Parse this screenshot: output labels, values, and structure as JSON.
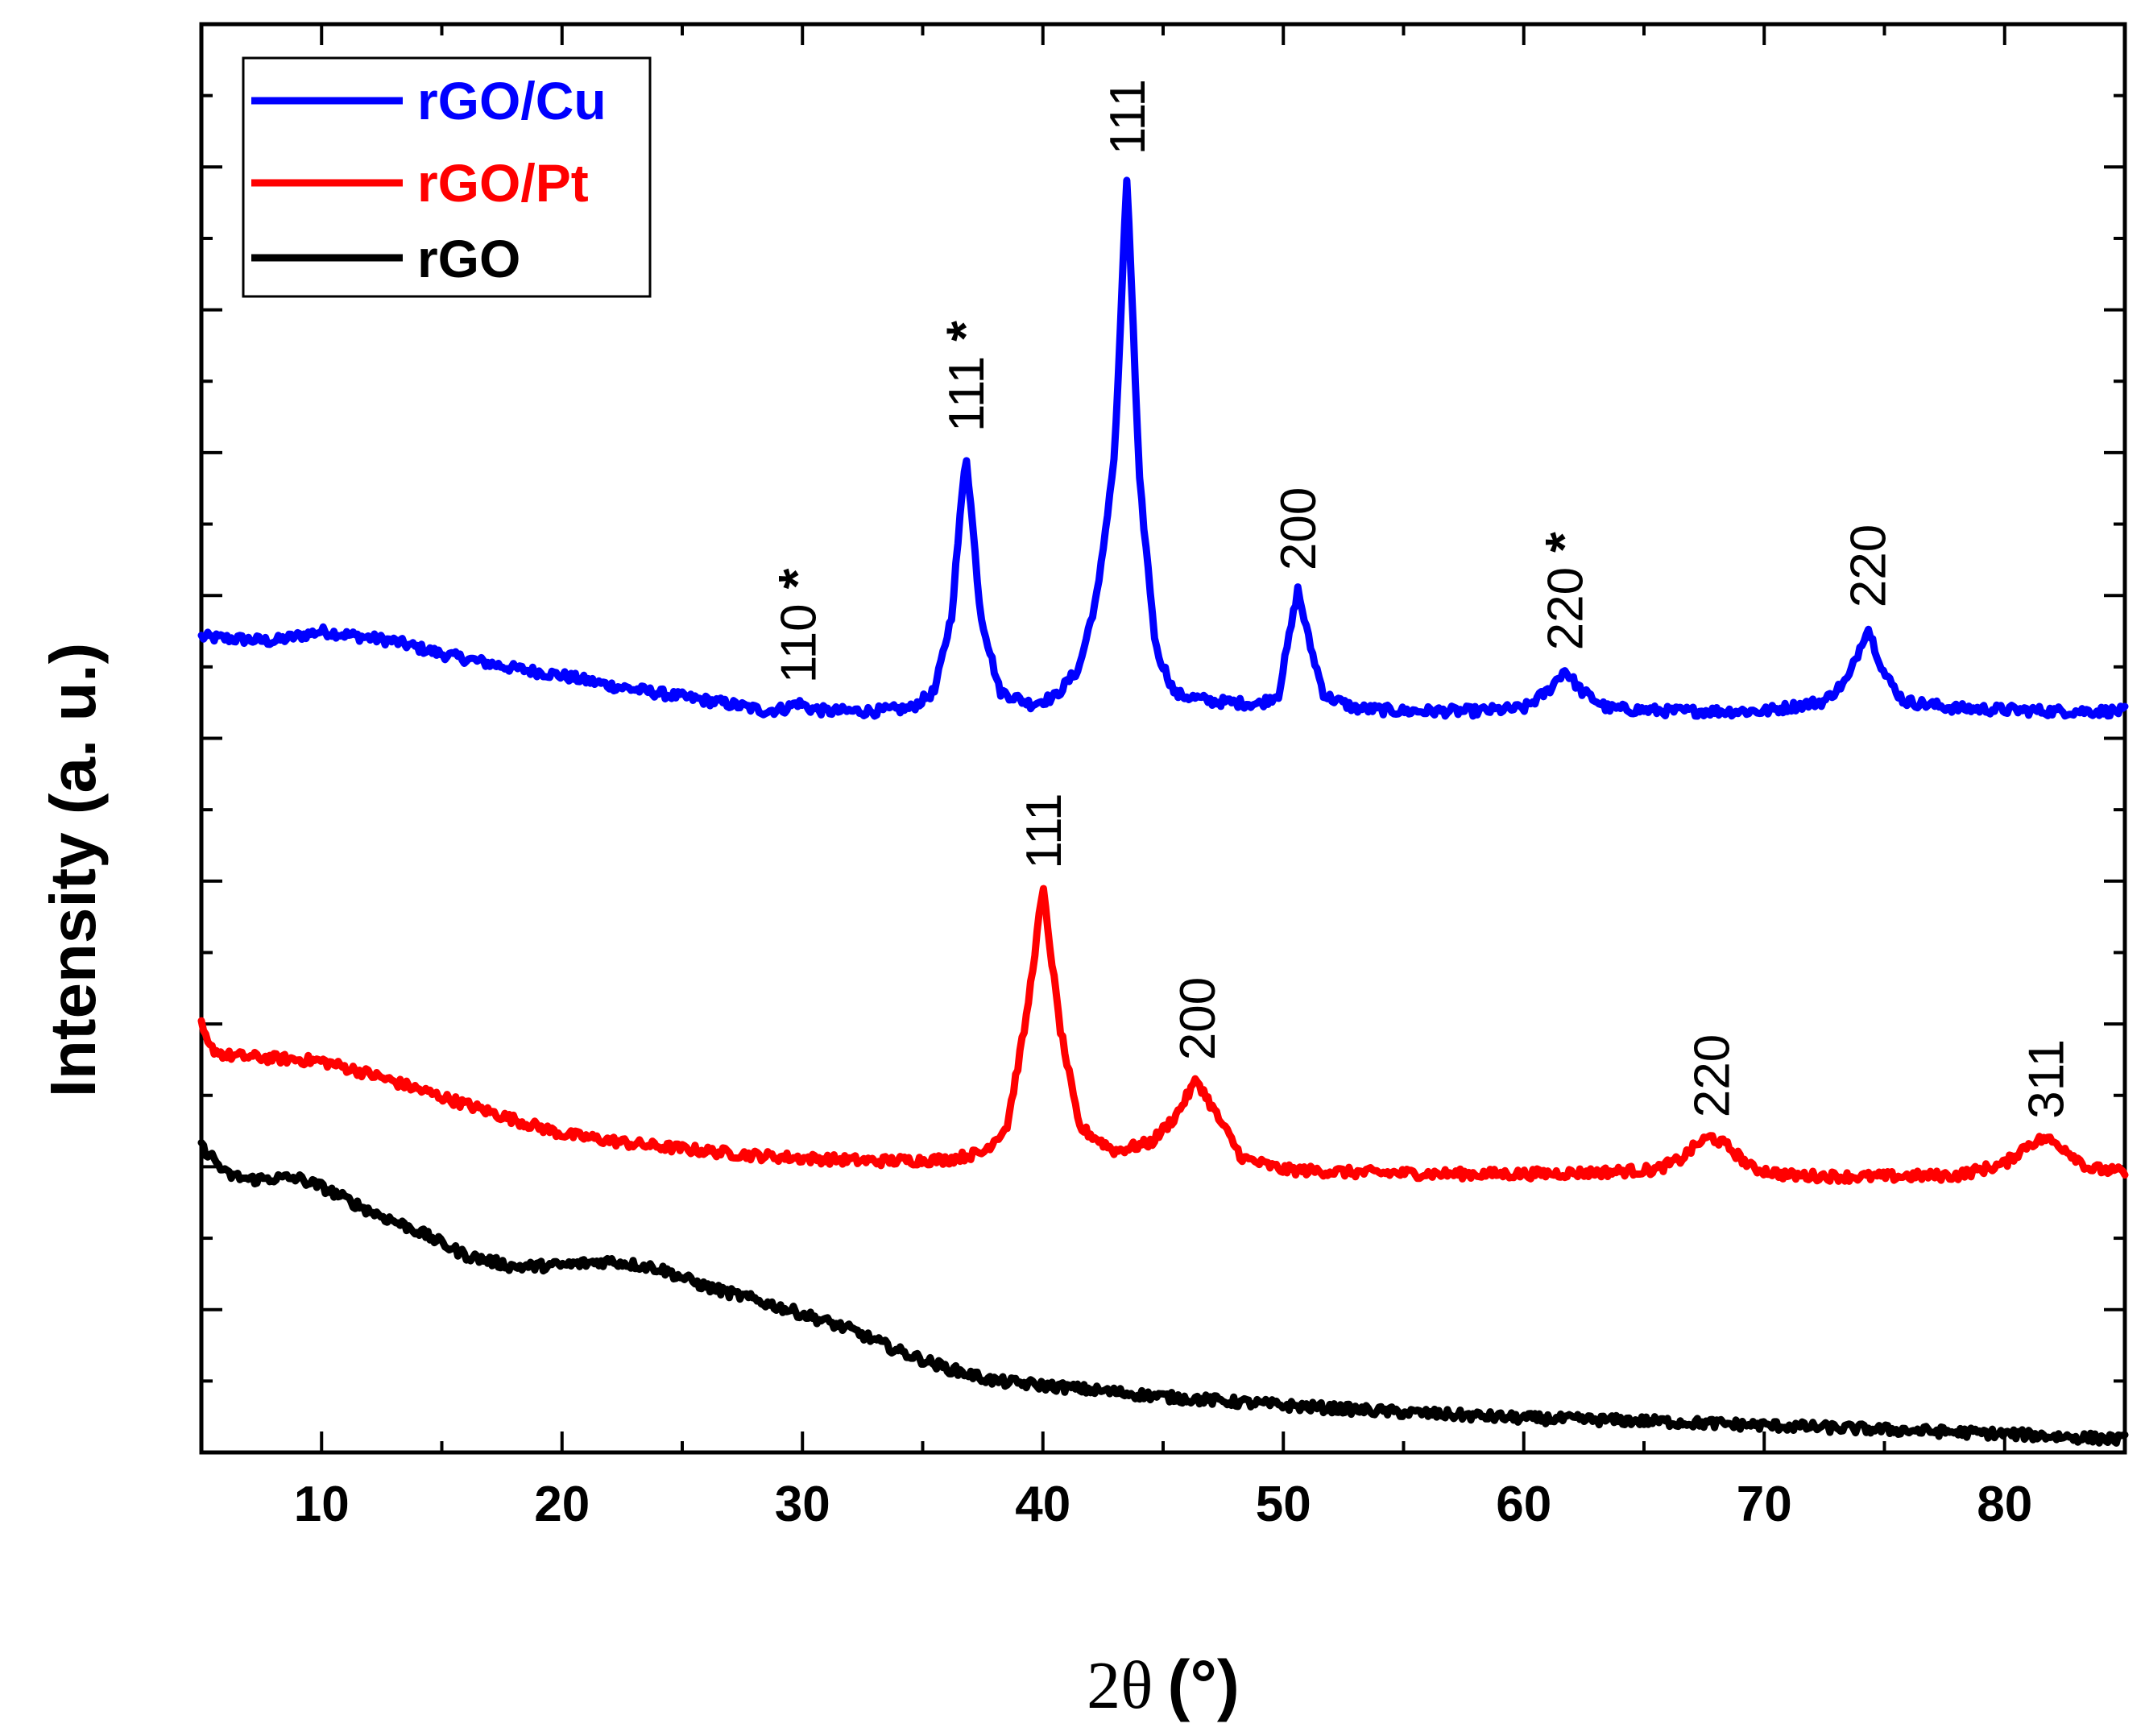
{
  "chart_data": {
    "type": "line",
    "title": "",
    "xlabel": "2θ",
    "xlabel_unit": "(°)",
    "ylabel": "Intensity (a. u.)",
    "xlim": [
      5,
      85
    ],
    "ylim": [
      0,
      100
    ],
    "y_ticks_labeled": false,
    "x_ticks": [
      10,
      20,
      30,
      40,
      50,
      60,
      70,
      80
    ],
    "x_tick_labels": [
      "10",
      "20",
      "30",
      "40",
      "50",
      "60",
      "70",
      "80"
    ],
    "legend": {
      "position": "top-left",
      "entries": [
        "rGO/Cu",
        "rGO/Pt",
        "rGO"
      ]
    },
    "series": [
      {
        "name": "rGO/Cu",
        "color": "#0000ff",
        "points": [
          [
            5,
            57.1
          ],
          [
            8,
            56.8
          ],
          [
            10,
            57.5
          ],
          [
            13,
            56.8
          ],
          [
            15,
            55.9
          ],
          [
            18,
            54.9
          ],
          [
            20,
            54.4
          ],
          [
            22,
            53.7
          ],
          [
            25,
            52.9
          ],
          [
            27,
            52.4
          ],
          [
            28.5,
            51.9
          ],
          [
            29.3,
            52.1
          ],
          [
            29.8,
            52.5
          ],
          [
            30.3,
            52.1
          ],
          [
            31,
            51.9
          ],
          [
            33,
            51.9
          ],
          [
            34.5,
            52.1
          ],
          [
            35.5,
            53.3
          ],
          [
            36.2,
            58.6
          ],
          [
            36.8,
            70.1
          ],
          [
            37.4,
            58.8
          ],
          [
            38.2,
            53.3
          ],
          [
            39.5,
            52.4
          ],
          [
            40.5,
            52.9
          ],
          [
            41.5,
            54.9
          ],
          [
            42.3,
            60.4
          ],
          [
            43,
            70.2
          ],
          [
            43.5,
            89.5
          ],
          [
            44,
            68.3
          ],
          [
            44.7,
            56.3
          ],
          [
            45.5,
            53.1
          ],
          [
            47,
            52.6
          ],
          [
            49,
            52.4
          ],
          [
            49.8,
            53.1
          ],
          [
            50.2,
            56.7
          ],
          [
            50.6,
            60.4
          ],
          [
            51.1,
            56.6
          ],
          [
            51.7,
            53.0
          ],
          [
            53,
            52.1
          ],
          [
            55,
            51.9
          ],
          [
            58,
            51.9
          ],
          [
            60,
            52.1
          ],
          [
            61,
            53.3
          ],
          [
            61.7,
            54.8
          ],
          [
            62.4,
            53.3
          ],
          [
            63.5,
            52.1
          ],
          [
            66,
            51.9
          ],
          [
            70,
            51.9
          ],
          [
            72.5,
            52.6
          ],
          [
            73.5,
            54.2
          ],
          [
            74.3,
            57.8
          ],
          [
            75,
            54.5
          ],
          [
            75.8,
            52.6
          ],
          [
            78,
            52.1
          ],
          [
            82,
            51.9
          ],
          [
            85,
            51.9
          ]
        ]
      },
      {
        "name": "rGO/Pt",
        "color": "#ff0000",
        "points": [
          [
            5,
            29.9
          ],
          [
            5.3,
            28.4
          ],
          [
            6,
            27.8
          ],
          [
            8,
            27.6
          ],
          [
            10,
            27.4
          ],
          [
            12,
            26.5
          ],
          [
            15,
            24.9
          ],
          [
            18,
            23.3
          ],
          [
            20,
            22.3
          ],
          [
            23,
            21.6
          ],
          [
            26,
            21.1
          ],
          [
            28,
            20.8
          ],
          [
            30,
            20.6
          ],
          [
            33,
            20.4
          ],
          [
            36,
            20.5
          ],
          [
            37.5,
            21.0
          ],
          [
            38.5,
            22.8
          ],
          [
            39.3,
            30.3
          ],
          [
            40,
            39.5
          ],
          [
            40.7,
            29.9
          ],
          [
            41.5,
            22.8
          ],
          [
            43,
            21.1
          ],
          [
            44.5,
            21.7
          ],
          [
            45.5,
            23.5
          ],
          [
            46.4,
            26.1
          ],
          [
            47.3,
            23.4
          ],
          [
            48.3,
            20.6
          ],
          [
            50,
            19.8
          ],
          [
            53,
            19.6
          ],
          [
            57,
            19.5
          ],
          [
            60,
            19.5
          ],
          [
            63,
            19.6
          ],
          [
            65.5,
            19.8
          ],
          [
            66.5,
            20.5
          ],
          [
            67.3,
            21.7
          ],
          [
            67.8,
            22.1
          ],
          [
            68.5,
            21.4
          ],
          [
            69.5,
            19.9
          ],
          [
            71,
            19.4
          ],
          [
            74,
            19.3
          ],
          [
            78,
            19.4
          ],
          [
            80,
            20.2
          ],
          [
            81,
            21.6
          ],
          [
            81.7,
            22.0
          ],
          [
            82.5,
            21.3
          ],
          [
            83.5,
            19.9
          ],
          [
            85,
            19.6
          ]
        ]
      },
      {
        "name": "rGO",
        "color": "#000000",
        "points": [
          [
            5,
            21.4
          ],
          [
            5.5,
            20.6
          ],
          [
            6,
            19.5
          ],
          [
            7,
            19.1
          ],
          [
            8,
            19.2
          ],
          [
            9,
            19.2
          ],
          [
            10,
            18.6
          ],
          [
            12,
            16.9
          ],
          [
            14,
            15.5
          ],
          [
            16,
            13.8
          ],
          [
            18,
            13.0
          ],
          [
            20,
            13.1
          ],
          [
            22,
            13.4
          ],
          [
            24,
            12.9
          ],
          [
            26,
            11.6
          ],
          [
            28,
            10.7
          ],
          [
            30,
            9.7
          ],
          [
            32,
            8.6
          ],
          [
            34,
            7.1
          ],
          [
            36,
            5.9
          ],
          [
            38,
            5.0
          ],
          [
            40,
            4.7
          ],
          [
            45,
            3.9
          ],
          [
            50,
            3.3
          ],
          [
            55,
            2.8
          ],
          [
            60,
            2.4
          ],
          [
            65,
            2.2
          ],
          [
            70,
            1.9
          ],
          [
            75,
            1.6
          ],
          [
            80,
            1.3
          ],
          [
            85,
            0.9
          ]
        ]
      }
    ],
    "annotations": [
      {
        "text": "110",
        "star": "*",
        "series": "rGO/Cu",
        "x": 29.8
      },
      {
        "text": "111",
        "star": "*",
        "series": "rGO/Cu",
        "x": 36.8
      },
      {
        "text": "111",
        "star": "",
        "series": "rGO/Cu",
        "x": 43.5
      },
      {
        "text": "200",
        "star": "",
        "series": "rGO/Cu",
        "x": 50.6
      },
      {
        "text": "220",
        "star": "*",
        "series": "rGO/Cu",
        "x": 61.7
      },
      {
        "text": "220",
        "star": "",
        "series": "rGO/Cu",
        "x": 74.3
      },
      {
        "text": "111",
        "star": "",
        "series": "rGO/Pt",
        "x": 40.0
      },
      {
        "text": "200",
        "star": "",
        "series": "rGO/Pt",
        "x": 46.4
      },
      {
        "text": "220",
        "star": "",
        "series": "rGO/Pt",
        "x": 67.8
      },
      {
        "text": "311",
        "star": "",
        "series": "rGO/Pt",
        "x": 81.7
      }
    ]
  }
}
